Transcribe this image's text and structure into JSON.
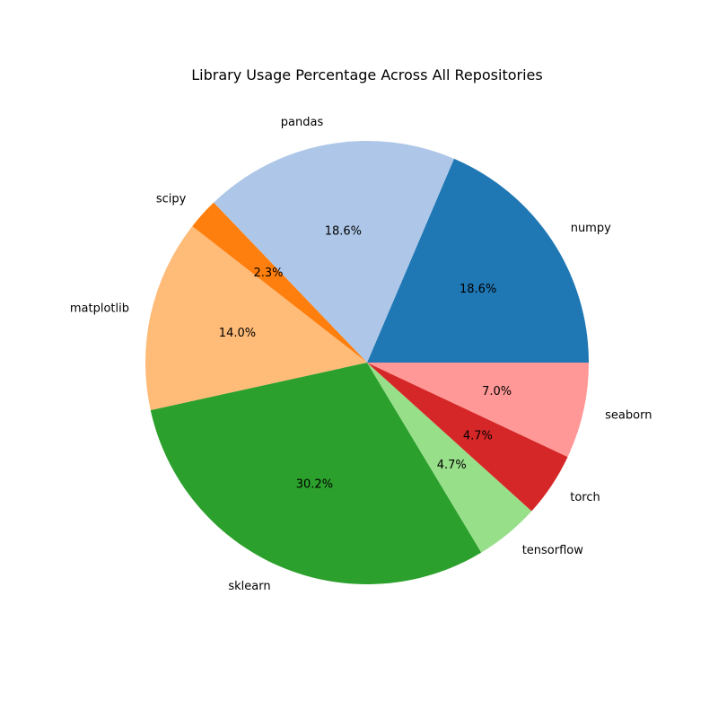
{
  "chart_data": {
    "type": "pie",
    "title": "Library Usage Percentage Across All Repositories",
    "start_angle_deg": 0,
    "direction": "counterclockwise",
    "slices": [
      {
        "label": "numpy",
        "percent": 18.6,
        "pct_label": "18.6%",
        "color": "#1f77b4"
      },
      {
        "label": "pandas",
        "percent": 18.6,
        "pct_label": "18.6%",
        "color": "#aec7e8"
      },
      {
        "label": "scipy",
        "percent": 2.3,
        "pct_label": "2.3%",
        "color": "#ff7f0e"
      },
      {
        "label": "matplotlib",
        "percent": 14.0,
        "pct_label": "14.0%",
        "color": "#ffbb78"
      },
      {
        "label": "sklearn",
        "percent": 30.2,
        "pct_label": "30.2%",
        "color": "#2ca02c"
      },
      {
        "label": "tensorflow",
        "percent": 4.7,
        "pct_label": "4.7%",
        "color": "#98df8a"
      },
      {
        "label": "torch",
        "percent": 4.7,
        "pct_label": "4.7%",
        "color": "#d62728"
      },
      {
        "label": "seaborn",
        "percent": 7.0,
        "pct_label": "7.0%",
        "color": "#ff9896"
      }
    ]
  }
}
